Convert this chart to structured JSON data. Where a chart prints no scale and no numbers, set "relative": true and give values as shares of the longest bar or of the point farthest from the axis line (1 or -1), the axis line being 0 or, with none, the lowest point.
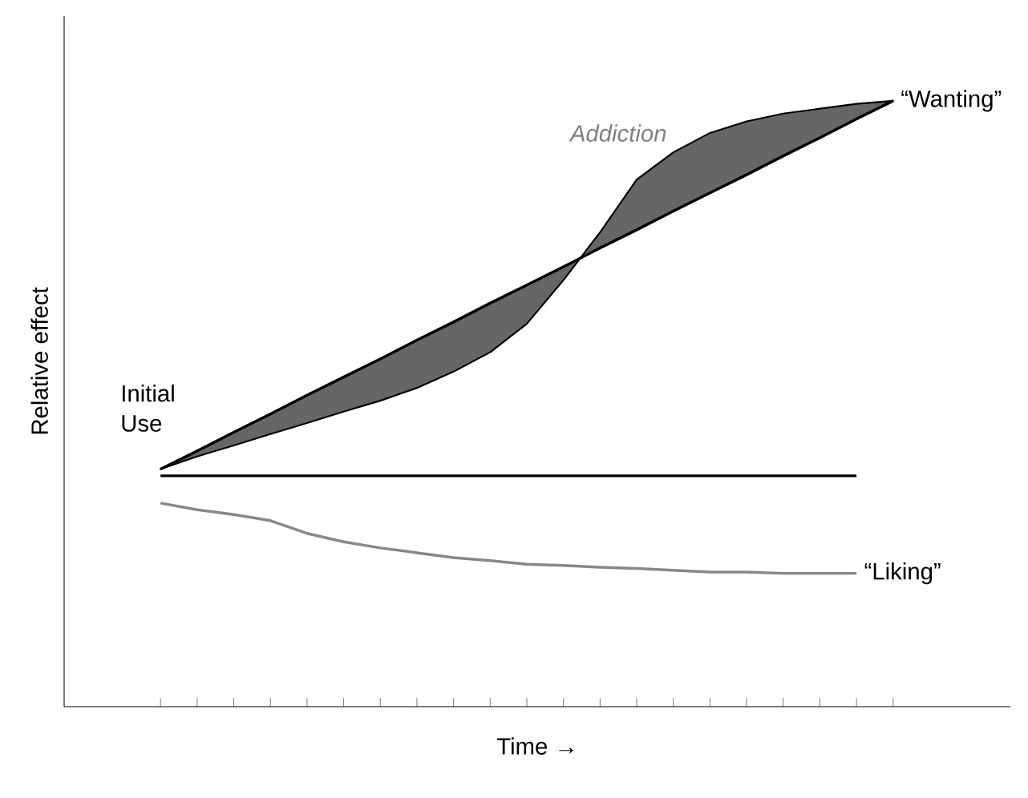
{
  "chart_data": {
    "type": "line",
    "relative": true,
    "xlabel": "Time →",
    "ylabel": "Relative effect",
    "grid": false,
    "marker": "none",
    "line_style": "solid",
    "categories": [
      null,
      null,
      null,
      null,
      null,
      null,
      null,
      null,
      null,
      null,
      null,
      null,
      null,
      null,
      null,
      null,
      null,
      null,
      null,
      null,
      null
    ],
    "series": [
      {
        "name": "“Wanting”",
        "color": "#000000",
        "values": [
          0.392,
          0.422,
          0.453,
          0.483,
          0.514,
          0.544,
          0.574,
          0.605,
          0.635,
          0.666,
          0.696,
          0.726,
          0.757,
          0.787,
          0.818,
          0.848,
          0.878,
          0.909,
          0.939,
          0.97,
          1.0
        ],
        "lower": [
          0.392,
          0.413,
          0.431,
          0.45,
          0.468,
          0.487,
          0.505,
          0.526,
          0.553,
          0.585,
          0.632,
          0.704,
          0.783,
          0.87,
          0.915,
          0.947,
          0.966,
          0.979,
          0.987,
          0.995,
          1.0
        ],
        "upper": [
          0.392,
          0.422,
          0.453,
          0.483,
          0.514,
          0.544,
          0.574,
          0.605,
          0.635,
          0.666,
          0.696,
          0.726,
          0.757,
          0.787,
          0.818,
          0.848,
          0.878,
          0.909,
          0.939,
          0.97,
          1.0
        ]
      },
      {
        "color": "#000000",
        "values": [
          0.381,
          0.381,
          0.381,
          0.381,
          0.381,
          0.381,
          0.381,
          0.381,
          0.381,
          0.381,
          0.381,
          0.381,
          0.381,
          0.381,
          0.381,
          0.381,
          0.381,
          0.381,
          0.381,
          0.381,
          null
        ]
      },
      {
        "name": "“Liking”",
        "color": "#888888",
        "values": [
          0.336,
          0.325,
          0.317,
          0.307,
          0.286,
          0.272,
          0.262,
          0.254,
          0.246,
          0.241,
          0.235,
          0.233,
          0.23,
          0.228,
          0.225,
          0.222,
          0.222,
          0.22,
          0.22,
          0.22,
          null
        ]
      }
    ],
    "annotations": [
      "Initial Use",
      "Addiction"
    ]
  }
}
